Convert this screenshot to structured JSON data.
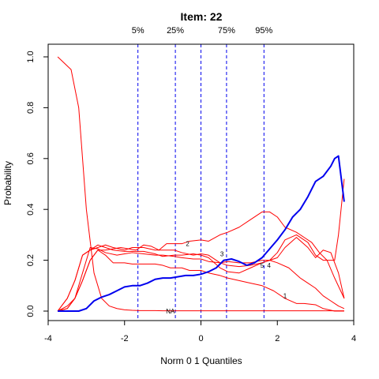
{
  "chart_data": {
    "type": "line",
    "title": "Item:  22",
    "xlabel": "Norm 0 1 Quantiles",
    "ylabel": "Probability",
    "xlim": [
      -4,
      4
    ],
    "ylim": [
      0,
      1
    ],
    "xticks": [
      -4,
      -2,
      0,
      2,
      4
    ],
    "yticks": [
      0.0,
      0.2,
      0.4,
      0.6,
      0.8,
      1.0
    ],
    "ytick_labels": [
      "0.0",
      "0.2",
      "0.4",
      "0.6",
      "0.8",
      "1.0"
    ],
    "grid": false,
    "quantile_lines": [
      {
        "label": "5%",
        "x": -1.65
      },
      {
        "label": "25%",
        "x": -0.67
      },
      {
        "label": "",
        "x": 0
      },
      {
        "label": "75%",
        "x": 0.67
      },
      {
        "label": "95%",
        "x": 1.65
      }
    ],
    "series": [
      {
        "name": "NA",
        "color": "#ff0000",
        "label_at": [
          -0.8,
          0.0
        ],
        "x": [
          -3.75,
          -3.4,
          -3.2,
          -3.0,
          -2.8,
          -2.6,
          -2.4,
          -2.2,
          -2.0,
          -1.8,
          -1.6,
          -1.4,
          -1.2,
          -1.0,
          -0.8,
          -0.6,
          -0.4,
          -0.2,
          0.0,
          0.2,
          0.4,
          0.6,
          0.8,
          1.0,
          1.5,
          2.0,
          2.5,
          3.0,
          3.5,
          3.75
        ],
        "y": [
          1.0,
          0.95,
          0.8,
          0.4,
          0.15,
          0.05,
          0.02,
          0.01,
          0.005,
          0.003,
          0.002,
          0.002,
          0.002,
          0.001,
          0.001,
          0.001,
          0.001,
          0.001,
          0.001,
          0.001,
          0.001,
          0.001,
          0.001,
          0.001,
          0.001,
          0.001,
          0.001,
          0.001,
          0.001,
          0.001
        ]
      },
      {
        "name": "1",
        "color": "#ff0000",
        "label_at": [
          2.2,
          0.06
        ],
        "x": [
          -3.75,
          -3.5,
          -3.3,
          -3.1,
          -2.9,
          -2.7,
          -2.5,
          -2.3,
          -2.0,
          -1.8,
          -1.5,
          -1.2,
          -1.0,
          -0.8,
          -0.5,
          -0.3,
          0.0,
          0.2,
          0.5,
          0.7,
          1.0,
          1.3,
          1.6,
          1.9,
          2.2,
          2.5,
          2.7,
          3.0,
          3.2,
          3.5,
          3.75
        ],
        "y": [
          0.0,
          0.01,
          0.05,
          0.12,
          0.2,
          0.24,
          0.22,
          0.19,
          0.19,
          0.185,
          0.185,
          0.185,
          0.18,
          0.17,
          0.17,
          0.16,
          0.16,
          0.15,
          0.14,
          0.13,
          0.12,
          0.11,
          0.1,
          0.08,
          0.05,
          0.03,
          0.03,
          0.025,
          0.01,
          0.0,
          0.0
        ]
      },
      {
        "name": "2",
        "color": "#ff0000",
        "label_at": [
          -0.35,
          0.265
        ],
        "x": [
          -3.75,
          -3.5,
          -3.3,
          -3.1,
          -2.9,
          -2.7,
          -2.5,
          -2.3,
          -2.1,
          -1.9,
          -1.7,
          -1.5,
          -1.3,
          -1.1,
          -0.9,
          -0.7,
          -0.5,
          -0.3,
          0.0,
          0.2,
          0.5,
          0.7,
          1.0,
          1.3,
          1.6,
          1.8,
          2.0,
          2.2,
          2.5,
          2.7,
          2.9,
          3.1,
          3.3,
          3.5,
          3.75
        ],
        "y": [
          0.0,
          0.02,
          0.05,
          0.12,
          0.2,
          0.24,
          0.24,
          0.245,
          0.25,
          0.245,
          0.24,
          0.26,
          0.255,
          0.24,
          0.265,
          0.265,
          0.265,
          0.275,
          0.28,
          0.275,
          0.3,
          0.31,
          0.33,
          0.36,
          0.39,
          0.39,
          0.37,
          0.33,
          0.31,
          0.29,
          0.27,
          0.23,
          0.2,
          0.13,
          0.05
        ]
      },
      {
        "name": "3",
        "color": "#ff0000",
        "label_at": [
          0.55,
          0.225
        ],
        "x": [
          -3.75,
          -3.5,
          -3.3,
          -3.1,
          -2.9,
          -2.7,
          -2.5,
          -2.2,
          -2.0,
          -1.8,
          -1.5,
          -1.2,
          -1.0,
          -0.7,
          -0.5,
          -0.2,
          0.0,
          0.2,
          0.5,
          0.7,
          1.0,
          1.3,
          1.6,
          1.8,
          2.0,
          2.3,
          2.6,
          2.8,
          3.0,
          3.2,
          3.4,
          3.6,
          3.75
        ],
        "y": [
          0.0,
          0.01,
          0.05,
          0.15,
          0.25,
          0.245,
          0.23,
          0.22,
          0.225,
          0.23,
          0.225,
          0.22,
          0.22,
          0.215,
          0.21,
          0.205,
          0.205,
          0.195,
          0.19,
          0.195,
          0.19,
          0.19,
          0.2,
          0.2,
          0.19,
          0.17,
          0.13,
          0.11,
          0.09,
          0.06,
          0.04,
          0.02,
          0.01
        ]
      },
      {
        "name": "4",
        "color": "#ff0000",
        "label_at": [
          1.78,
          0.18
        ],
        "x": [
          -3.75,
          -3.5,
          -3.3,
          -3.1,
          -2.9,
          -2.7,
          -2.5,
          -2.3,
          -2.0,
          -1.8,
          -1.5,
          -1.2,
          -1.0,
          -0.7,
          -0.5,
          -0.2,
          0.0,
          0.2,
          0.5,
          0.7,
          1.0,
          1.3,
          1.6,
          1.8,
          2.0,
          2.2,
          2.5,
          2.8,
          3.0,
          3.2,
          3.5,
          3.6,
          3.75
        ],
        "y": [
          0.0,
          0.05,
          0.12,
          0.22,
          0.24,
          0.26,
          0.25,
          0.24,
          0.235,
          0.235,
          0.235,
          0.225,
          0.215,
          0.22,
          0.22,
          0.225,
          0.22,
          0.21,
          0.17,
          0.155,
          0.15,
          0.17,
          0.19,
          0.2,
          0.23,
          0.28,
          0.3,
          0.27,
          0.22,
          0.2,
          0.2,
          0.3,
          0.52
        ]
      },
      {
        "name": "5",
        "color": "#ff0000",
        "label_at": [
          1.6,
          0.18
        ],
        "x": [
          -3.75,
          -3.5,
          -3.3,
          -3.1,
          -2.9,
          -2.7,
          -2.5,
          -2.3,
          -2.0,
          -1.8,
          -1.5,
          -1.2,
          -1.0,
          -0.7,
          -0.5,
          -0.2,
          0.0,
          0.2,
          0.5,
          0.7,
          1.0,
          1.3,
          1.6,
          1.8,
          2.0,
          2.2,
          2.5,
          2.8,
          3.0,
          3.2,
          3.4,
          3.6,
          3.75
        ],
        "y": [
          0.0,
          0.05,
          0.12,
          0.22,
          0.24,
          0.25,
          0.26,
          0.25,
          0.24,
          0.25,
          0.25,
          0.24,
          0.24,
          0.24,
          0.23,
          0.22,
          0.225,
          0.22,
          0.19,
          0.18,
          0.175,
          0.18,
          0.19,
          0.2,
          0.21,
          0.25,
          0.29,
          0.25,
          0.21,
          0.24,
          0.23,
          0.15,
          0.05
        ]
      },
      {
        "name": "",
        "color": "#0000ee",
        "x": [
          -3.75,
          -3.2,
          -3.0,
          -2.8,
          -2.6,
          -2.4,
          -2.2,
          -2.0,
          -1.8,
          -1.6,
          -1.4,
          -1.2,
          -1.0,
          -0.8,
          -0.6,
          -0.4,
          -0.2,
          0.0,
          0.2,
          0.4,
          0.6,
          0.8,
          1.0,
          1.2,
          1.4,
          1.6,
          1.8,
          2.0,
          2.2,
          2.4,
          2.6,
          2.8,
          3.0,
          3.2,
          3.4,
          3.5,
          3.6,
          3.75
        ],
        "y": [
          0.0,
          0.0,
          0.01,
          0.04,
          0.055,
          0.065,
          0.08,
          0.095,
          0.1,
          0.1,
          0.11,
          0.125,
          0.13,
          0.13,
          0.135,
          0.14,
          0.14,
          0.145,
          0.155,
          0.17,
          0.2,
          0.205,
          0.195,
          0.18,
          0.19,
          0.21,
          0.245,
          0.28,
          0.32,
          0.37,
          0.4,
          0.45,
          0.51,
          0.53,
          0.57,
          0.6,
          0.61,
          0.43
        ]
      }
    ]
  }
}
